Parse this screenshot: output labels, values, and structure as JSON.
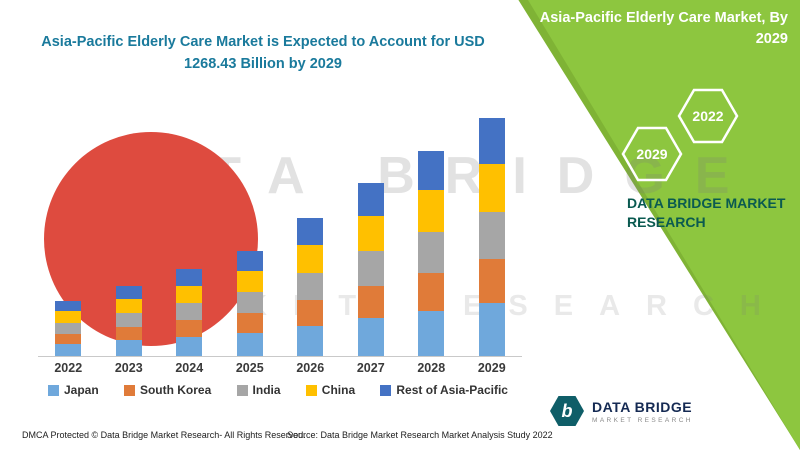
{
  "header": {
    "right_title_line1": "Asia-Pacific Elderly Care Market, By",
    "right_title_line2": "2029",
    "main_title_line1": "Asia-Pacific Elderly Care Market is Expected to Account for USD",
    "main_title_line2": "1268.43 Billion by 2029"
  },
  "side_panel": {
    "hex_front": "2029",
    "hex_back": "2022",
    "brand_text": "DATA BRIDGE MARKET RESEARCH"
  },
  "watermark": {
    "line1": "DATA BRIDGE",
    "line2": "MARKET RESEARCH"
  },
  "colors": {
    "band_green": "#8DC63F",
    "title_teal": "#1A7A9C",
    "brand_teal": "#0A5A50",
    "decorative_red": "#DE4B3F"
  },
  "chart_data": {
    "type": "bar",
    "stacked": true,
    "title": "Asia-Pacific Elderly Care Market is Expected to Account for USD 1268.43 Billion by 2029",
    "unit": "USD Billion",
    "categories": [
      "2022",
      "2023",
      "2024",
      "2025",
      "2026",
      "2027",
      "2028",
      "2029"
    ],
    "series": [
      {
        "name": "Japan",
        "color": "#6FA8DC",
        "values": [
          65,
          83,
          103,
          124,
          162,
          203,
          241,
          280
        ]
      },
      {
        "name": "South Korea",
        "color": "#E07B39",
        "values": [
          55,
          70,
          87,
          105,
          137,
          172,
          204,
          237
        ]
      },
      {
        "name": "India",
        "color": "#A6A6A6",
        "values": [
          58,
          74,
          92,
          112,
          146,
          183,
          217,
          252
        ]
      },
      {
        "name": "China",
        "color": "#FFC000",
        "values": [
          60,
          76,
          94,
          114,
          148,
          186,
          221,
          256
        ]
      },
      {
        "name": "Rest of Asia-Pacific",
        "color": "#4472C4",
        "values": [
          56,
          72,
          89,
          107,
          140,
          176,
          208,
          243.43
        ]
      }
    ],
    "total_2029": 1268.43,
    "ylim": [
      0,
      1300
    ],
    "grid": false,
    "legend_position": "bottom"
  },
  "footer": {
    "dmca": "DMCA Protected © Data Bridge Market Research- All Rights Reserved.",
    "source": "Source: Data Bridge Market Research Market Analysis Study 2022",
    "logo_letter": "b",
    "logo_name": "DATA BRIDGE",
    "logo_sub": "MARKET RESEARCH"
  }
}
